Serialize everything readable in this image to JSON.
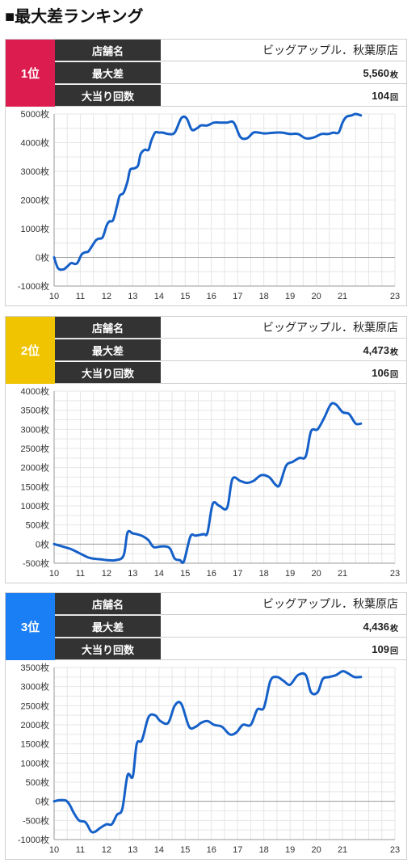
{
  "page": {
    "title": "■最大差ランキング"
  },
  "labels": {
    "store": "店舗名",
    "max_diff": "最大差",
    "big_hits": "大当り回数"
  },
  "units": {
    "coins": "枚",
    "times": "回"
  },
  "colors": {
    "rank1": "#dc1c4e",
    "rank2": "#f0c400",
    "rank3": "#1a7ef5",
    "line": "#1560c8",
    "label_bg": "#333333"
  },
  "rankings": [
    {
      "rank": "1位",
      "store": "ビッグアップル．秋葉原店",
      "max_diff": "5,560",
      "big_hits": "104"
    },
    {
      "rank": "2位",
      "store": "ビッグアップル．秋葉原店",
      "max_diff": "4,473",
      "big_hits": "106"
    },
    {
      "rank": "3位",
      "store": "ビッグアップル．秋葉原店",
      "max_diff": "4,436",
      "big_hits": "109"
    }
  ],
  "chart_data": [
    {
      "type": "line",
      "x_ticks": [
        10,
        11,
        12,
        13,
        14,
        15,
        16,
        17,
        18,
        19,
        20,
        21,
        23
      ],
      "y_ticks": [
        -1000,
        0,
        1000,
        2000,
        3000,
        4000,
        5000
      ],
      "y_tick_labels": [
        "-1000枚",
        "0枚",
        "1000枚",
        "2000枚",
        "3000枚",
        "4000枚",
        "5000枚"
      ],
      "xlim": [
        10,
        23
      ],
      "ylim": [
        -1000,
        5000
      ],
      "grid": true,
      "series": [
        {
          "x": [
            10,
            10.15,
            10.35,
            10.5,
            10.65,
            10.8,
            10.9,
            11.05,
            11.2,
            11.3,
            11.45,
            11.6,
            11.7,
            11.85,
            12,
            12.1,
            12.25,
            12.4,
            12.5,
            12.65,
            12.8,
            12.9,
            13.05,
            13.2,
            13.3,
            13.45,
            13.6,
            13.7,
            13.85,
            14,
            14.15,
            14.35,
            14.6,
            14.85,
            15.05,
            15.25,
            15.45,
            15.6,
            15.85,
            16.1,
            16.35,
            16.6,
            16.85,
            17.1,
            17.35,
            17.6,
            17.8,
            18,
            18.2,
            18.45,
            18.7,
            19,
            19.3,
            19.6,
            19.9,
            20.2,
            20.45,
            20.65,
            20.85,
            21,
            21.15,
            21.35,
            21.5,
            21.7
          ],
          "y": [
            0,
            -380,
            -420,
            -320,
            -200,
            -230,
            -180,
            100,
            180,
            200,
            400,
            600,
            650,
            700,
            1100,
            1250,
            1300,
            1800,
            2150,
            2250,
            2650,
            3050,
            3100,
            3200,
            3600,
            3750,
            3750,
            4050,
            4350,
            4350,
            4350,
            4300,
            4350,
            4850,
            4850,
            4450,
            4500,
            4600,
            4600,
            4700,
            4700,
            4700,
            4700,
            4200,
            4150,
            4350,
            4350,
            4320,
            4330,
            4350,
            4350,
            4300,
            4300,
            4150,
            4180,
            4300,
            4300,
            4350,
            4350,
            4700,
            4900,
            4950,
            5000,
            4950
          ]
        }
      ]
    },
    {
      "type": "line",
      "x_ticks": [
        10,
        11,
        12,
        13,
        14,
        15,
        16,
        17,
        18,
        19,
        20,
        21,
        23
      ],
      "y_ticks": [
        -500,
        0,
        500,
        1000,
        1500,
        2000,
        2500,
        3000,
        3500,
        4000
      ],
      "y_tick_labels": [
        "-500枚",
        "0枚",
        "500枚",
        "1000枚",
        "1500枚",
        "2000枚",
        "2500枚",
        "3000枚",
        "3500枚",
        "4000枚"
      ],
      "xlim": [
        10,
        23
      ],
      "ylim": [
        -500,
        4000
      ],
      "grid": true,
      "series": [
        {
          "x": [
            10,
            10.2,
            10.4,
            10.6,
            10.8,
            11,
            11.3,
            11.5,
            11.8,
            12.05,
            12.35,
            12.65,
            12.8,
            13,
            13.2,
            13.4,
            13.6,
            13.8,
            14.1,
            14.4,
            14.6,
            14.8,
            14.95,
            15.2,
            15.4,
            15.7,
            15.85,
            16.05,
            16.3,
            16.6,
            16.8,
            17.1,
            17.35,
            17.6,
            17.9,
            18.2,
            18.45,
            18.6,
            18.85,
            19.1,
            19.35,
            19.6,
            19.8,
            20.05,
            20.3,
            20.55,
            20.75,
            21,
            21.25,
            21.5,
            21.7
          ],
          "y": [
            0,
            -40,
            -80,
            -120,
            -180,
            -250,
            -350,
            -380,
            -400,
            -420,
            -420,
            -300,
            300,
            280,
            250,
            200,
            100,
            -80,
            -60,
            -100,
            -380,
            -420,
            -450,
            200,
            220,
            260,
            300,
            1050,
            1000,
            950,
            1700,
            1650,
            1600,
            1650,
            1800,
            1750,
            1550,
            1550,
            2050,
            2150,
            2250,
            2300,
            2950,
            3000,
            3300,
            3650,
            3650,
            3450,
            3400,
            3150,
            3150
          ]
        }
      ]
    },
    {
      "type": "line",
      "x_ticks": [
        10,
        11,
        12,
        13,
        14,
        15,
        16,
        17,
        18,
        19,
        20,
        21,
        23
      ],
      "y_ticks": [
        -1000,
        -500,
        0,
        500,
        1000,
        1500,
        2000,
        2500,
        3000,
        3500
      ],
      "y_tick_labels": [
        "-1000枚",
        "-500枚",
        "0枚",
        "500枚",
        "1000枚",
        "1500枚",
        "2000枚",
        "2500枚",
        "3000枚",
        "3500枚"
      ],
      "xlim": [
        10,
        23
      ],
      "ylim": [
        -1000,
        3500
      ],
      "grid": true,
      "series": [
        {
          "x": [
            10,
            10.2,
            10.45,
            10.6,
            10.75,
            10.95,
            11.2,
            11.4,
            11.55,
            11.75,
            12,
            12.2,
            12.4,
            12.6,
            12.8,
            13,
            13.15,
            13.35,
            13.6,
            13.85,
            14.05,
            14.35,
            14.6,
            14.85,
            15.15,
            15.4,
            15.6,
            15.85,
            16.1,
            16.4,
            16.7,
            16.95,
            17.2,
            17.5,
            17.75,
            18,
            18.25,
            18.5,
            18.75,
            19,
            19.3,
            19.6,
            19.8,
            20.05,
            20.25,
            20.5,
            20.75,
            21,
            21.2,
            21.45,
            21.7
          ],
          "y": [
            0,
            30,
            20,
            -100,
            -300,
            -500,
            -550,
            -780,
            -800,
            -700,
            -600,
            -600,
            -350,
            -200,
            680,
            650,
            1500,
            1600,
            2200,
            2250,
            2100,
            2050,
            2500,
            2550,
            1950,
            1950,
            2050,
            2100,
            2000,
            1950,
            1750,
            1800,
            2000,
            2000,
            2400,
            2450,
            3150,
            3250,
            3150,
            3050,
            3300,
            3300,
            2850,
            2850,
            3200,
            3250,
            3300,
            3400,
            3350,
            3250,
            3250
          ]
        }
      ]
    }
  ]
}
